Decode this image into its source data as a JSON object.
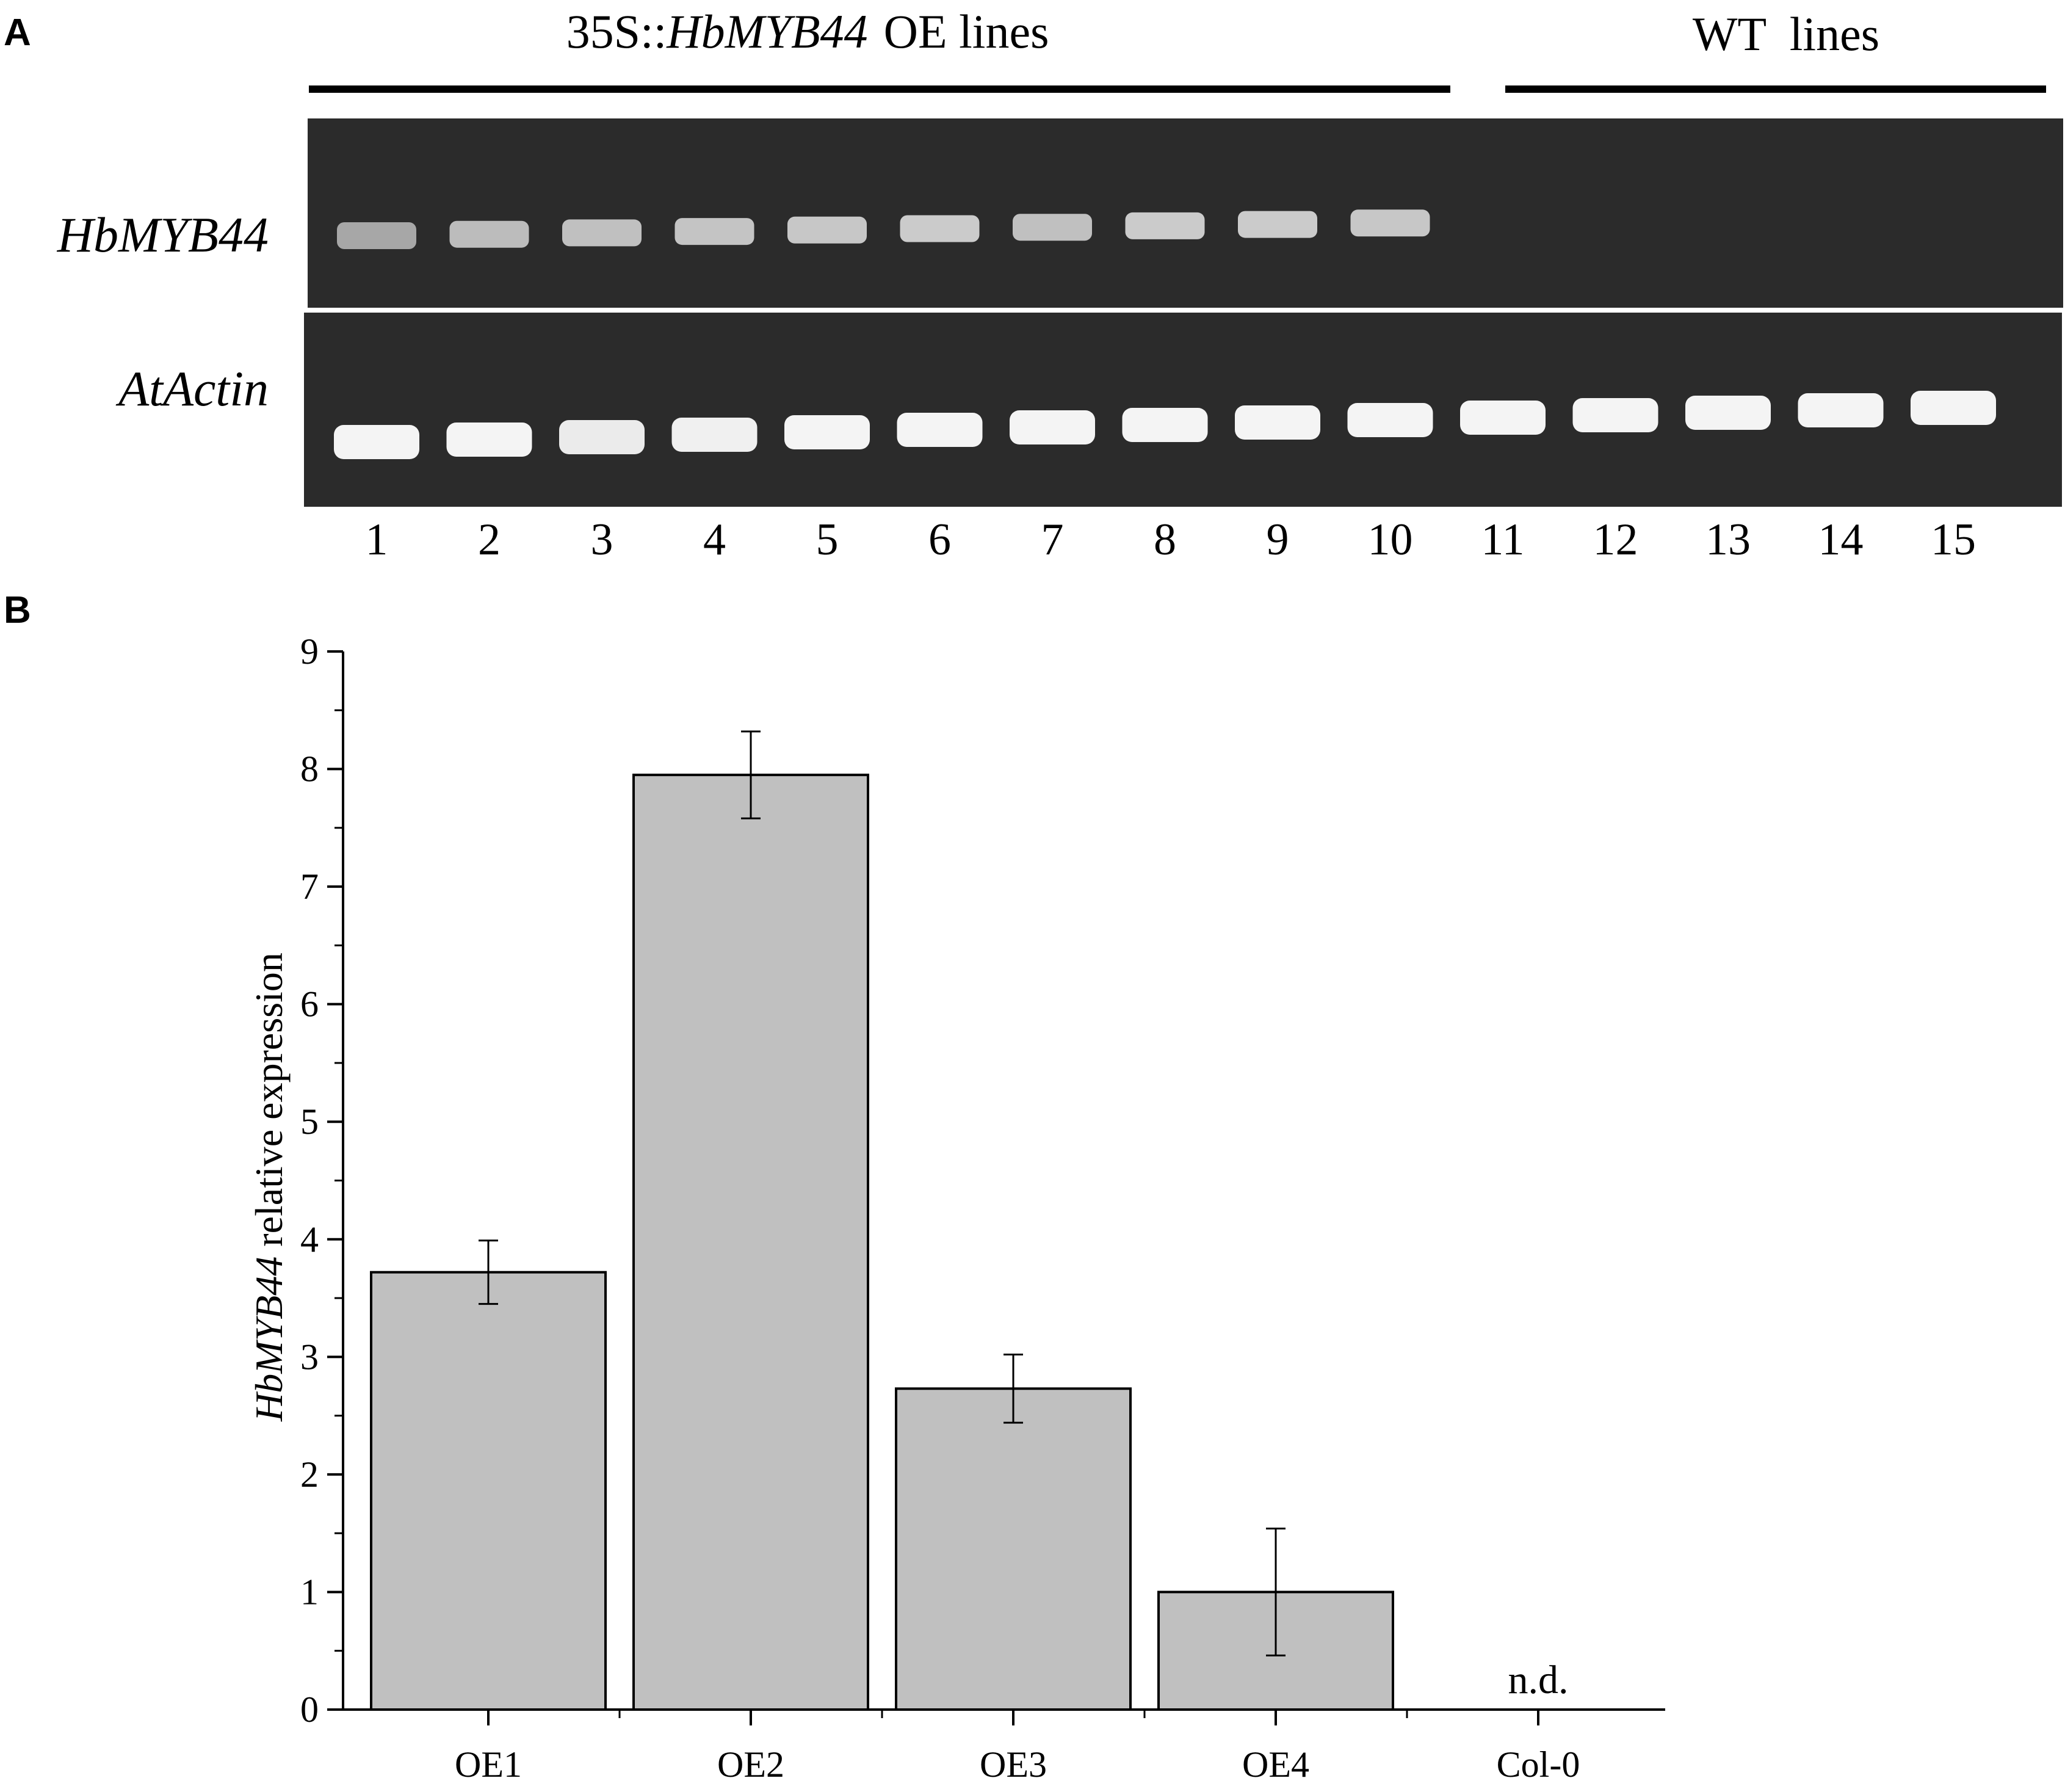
{
  "panels": {
    "a_letter": "A",
    "b_letter": "B"
  },
  "gel": {
    "header_left_prefix": "35S::",
    "header_left_gene": "HbMYB44",
    "header_left_suffix": "OE lines",
    "header_right": "WT  lines",
    "row_labels": [
      "HbMYB44",
      "AtActin"
    ],
    "lanes": [
      "1",
      "2",
      "3",
      "4",
      "5",
      "6",
      "7",
      "8",
      "9",
      "10",
      "11",
      "12",
      "13",
      "14",
      "15"
    ],
    "hbmyb44_band_intensity": [
      0.62,
      0.72,
      0.74,
      0.76,
      0.78,
      0.8,
      0.74,
      0.8,
      0.8,
      0.78,
      0,
      0,
      0,
      0,
      0
    ],
    "atactin_band_intensity": [
      1,
      1,
      0.96,
      0.98,
      1,
      1,
      1,
      1,
      1,
      1,
      1,
      1,
      1,
      1,
      1
    ],
    "colors": {
      "gel_background": "#2b2b2b",
      "band": "#f4f4f4"
    }
  },
  "chart_data": {
    "type": "bar",
    "categories": [
      "OE1",
      "OE2",
      "OE3",
      "OE4",
      "Col-0"
    ],
    "values": [
      3.72,
      7.95,
      2.73,
      1.0,
      null
    ],
    "errors": [
      0.27,
      0.37,
      0.29,
      0.54,
      null
    ],
    "annotations": [
      {
        "category": "Col-0",
        "text": "n.d."
      }
    ],
    "ylabel_gene": "HbMYB44",
    "ylabel_rest": " relative expression",
    "xlabel": "",
    "ylim": [
      0,
      9
    ],
    "yticks": [
      0,
      1,
      2,
      3,
      4,
      5,
      6,
      7,
      8,
      9
    ],
    "grid": false,
    "colors": {
      "bar_fill": "#c0c0c0",
      "bar_stroke": "#000000"
    }
  }
}
